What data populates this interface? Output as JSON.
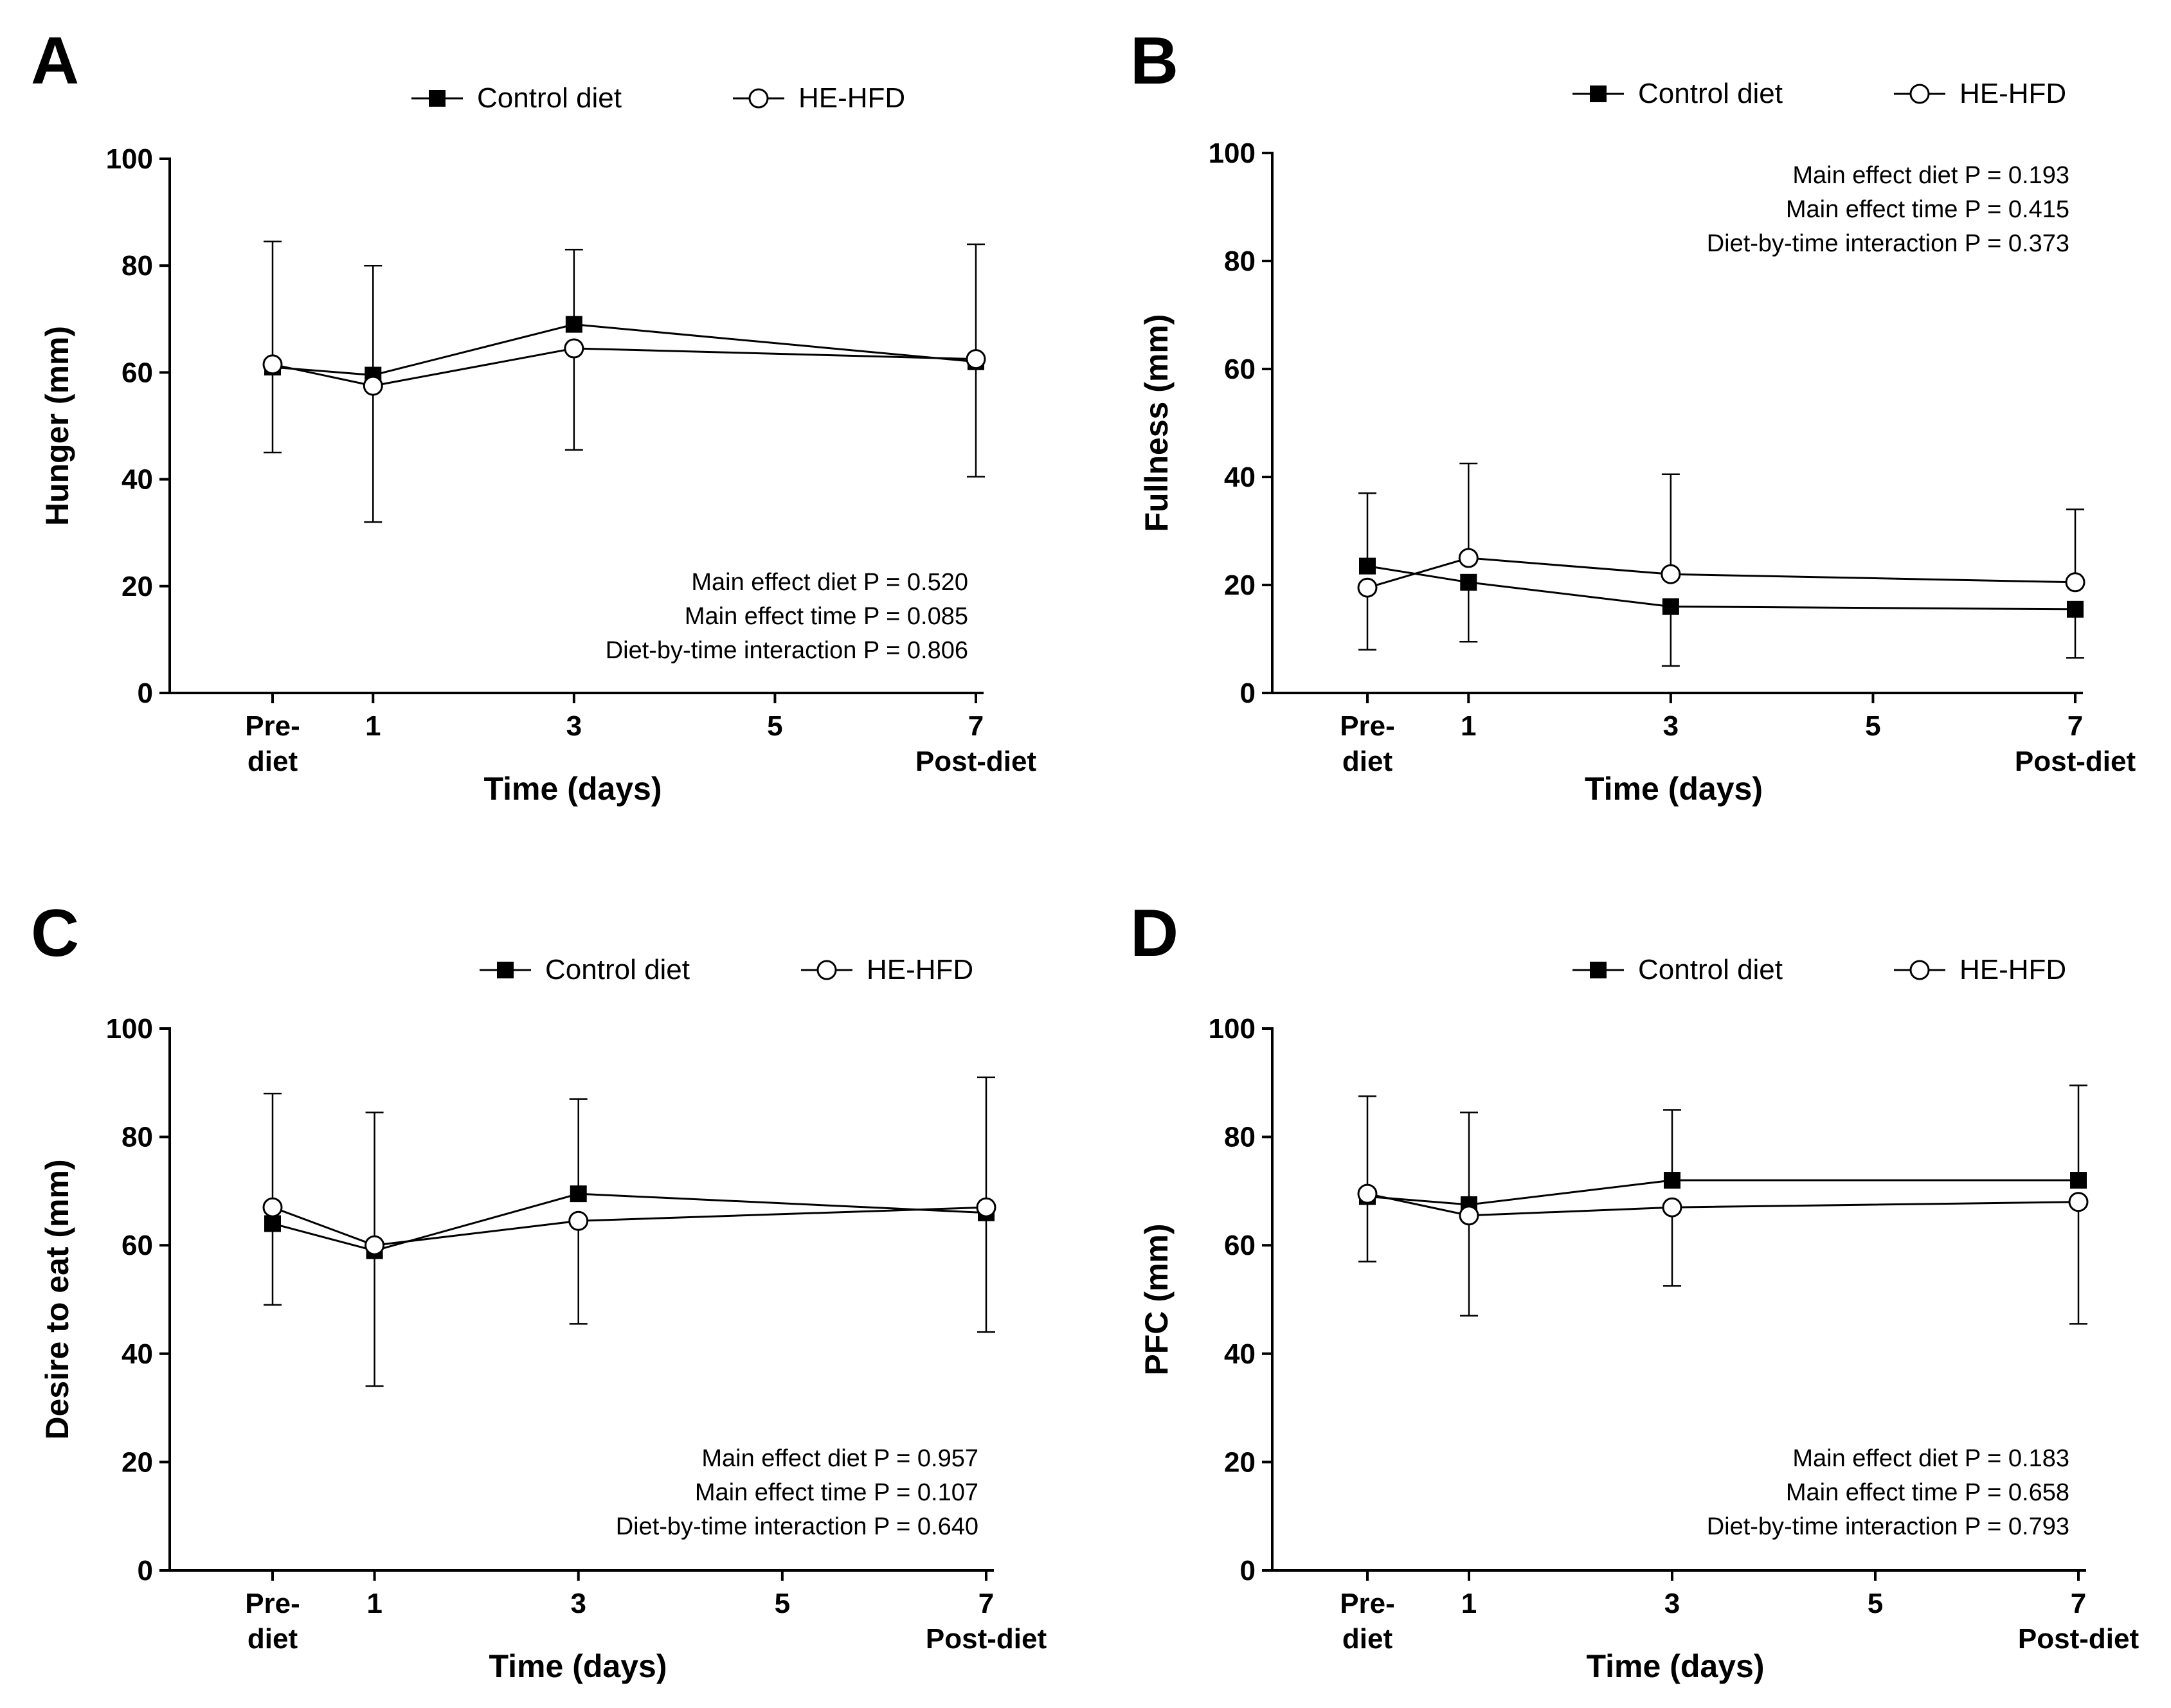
{
  "chart_data": [
    {
      "panel": "A",
      "type": "line",
      "ylabel": "Hunger (mm)",
      "xlabel": "Time (days)",
      "ylim": [
        0,
        100
      ],
      "yticks": [
        0,
        20,
        40,
        60,
        80,
        100
      ],
      "x_tick_labels": [
        {
          "x": 0,
          "lines": [
            "Pre-",
            "diet"
          ]
        },
        {
          "x": 1,
          "lines": [
            "1"
          ]
        },
        {
          "x": 3,
          "lines": [
            "3"
          ]
        },
        {
          "x": 5,
          "lines": [
            "5"
          ]
        },
        {
          "x": 7,
          "lines": [
            "7",
            "Post-diet"
          ]
        }
      ],
      "legend": [
        "Control diet",
        "HE-HFD"
      ],
      "series": [
        {
          "name": "Control diet",
          "marker": "square",
          "x": [
            0,
            1,
            3,
            7
          ],
          "values": [
            61,
            59.5,
            69,
            62
          ],
          "err_upper": [
            null,
            null,
            83,
            null
          ],
          "err_lower": [
            null,
            null,
            null,
            null
          ]
        },
        {
          "name": "HE-HFD",
          "marker": "circle",
          "x": [
            0,
            1,
            3,
            7
          ],
          "values": [
            61.5,
            57.5,
            64.5,
            62.5
          ],
          "err_upper": [
            84.5,
            80,
            null,
            84
          ],
          "err_lower": [
            45,
            32,
            45.5,
            40.5
          ]
        }
      ],
      "stats": [
        "Main effect diet P = 0.520",
        "Main effect time P = 0.085",
        "Diet-by-time interaction P = 0.806"
      ],
      "stats_position": "bottom-right"
    },
    {
      "panel": "B",
      "type": "line",
      "ylabel": "Fullness (mm)",
      "xlabel": "Time (days)",
      "ylim": [
        0,
        100
      ],
      "yticks": [
        0,
        20,
        40,
        60,
        80,
        100
      ],
      "x_tick_labels": [
        {
          "x": 0,
          "lines": [
            "Pre-",
            "diet"
          ]
        },
        {
          "x": 1,
          "lines": [
            "1"
          ]
        },
        {
          "x": 3,
          "lines": [
            "3"
          ]
        },
        {
          "x": 5,
          "lines": [
            "5"
          ]
        },
        {
          "x": 7,
          "lines": [
            "7",
            "Post-diet"
          ]
        }
      ],
      "legend": [
        "Control diet",
        "HE-HFD"
      ],
      "series": [
        {
          "name": "Control diet",
          "marker": "square",
          "x": [
            0,
            1,
            3,
            7
          ],
          "values": [
            23.5,
            20.5,
            16,
            15.5
          ],
          "err_upper": [
            37,
            null,
            null,
            null
          ],
          "err_lower": [
            null,
            9.5,
            5,
            6.5
          ]
        },
        {
          "name": "HE-HFD",
          "marker": "circle",
          "x": [
            0,
            1,
            3,
            7
          ],
          "values": [
            19.5,
            25,
            22,
            20.5
          ],
          "err_upper": [
            null,
            42.5,
            40.5,
            34
          ],
          "err_lower": [
            8,
            null,
            null,
            null
          ]
        }
      ],
      "stats": [
        "Main effect diet P = 0.193",
        "Main effect time P = 0.415",
        "Diet-by-time interaction P = 0.373"
      ],
      "stats_position": "top-right"
    },
    {
      "panel": "C",
      "type": "line",
      "ylabel": "Desire to eat (mm)",
      "xlabel": "Time (days)",
      "ylim": [
        0,
        100
      ],
      "yticks": [
        0,
        20,
        40,
        60,
        80,
        100
      ],
      "x_tick_labels": [
        {
          "x": 0,
          "lines": [
            "Pre-",
            "diet"
          ]
        },
        {
          "x": 1,
          "lines": [
            "1"
          ]
        },
        {
          "x": 3,
          "lines": [
            "3"
          ]
        },
        {
          "x": 5,
          "lines": [
            "5"
          ]
        },
        {
          "x": 7,
          "lines": [
            "7",
            "Post-diet"
          ]
        }
      ],
      "legend": [
        "Control diet",
        "HE-HFD"
      ],
      "series": [
        {
          "name": "Control diet",
          "marker": "square",
          "x": [
            0,
            1,
            3,
            7
          ],
          "values": [
            64,
            59,
            69.5,
            66
          ],
          "err_upper": [
            null,
            null,
            87,
            null
          ],
          "err_lower": [
            null,
            null,
            null,
            null
          ]
        },
        {
          "name": "HE-HFD",
          "marker": "circle",
          "x": [
            0,
            1,
            3,
            7
          ],
          "values": [
            67,
            60,
            64.5,
            67
          ],
          "err_upper": [
            88,
            84.5,
            null,
            91
          ],
          "err_lower": [
            49,
            34,
            45.5,
            44
          ]
        }
      ],
      "stats": [
        "Main effect diet P = 0.957",
        "Main effect time P = 0.107",
        "Diet-by-time interaction P = 0.640"
      ],
      "stats_position": "bottom-right"
    },
    {
      "panel": "D",
      "type": "line",
      "ylabel": "PFC (mm)",
      "xlabel": "Time (days)",
      "ylim": [
        0,
        100
      ],
      "yticks": [
        0,
        20,
        40,
        60,
        80,
        100
      ],
      "x_tick_labels": [
        {
          "x": 0,
          "lines": [
            "Pre-",
            "diet"
          ]
        },
        {
          "x": 1,
          "lines": [
            "1"
          ]
        },
        {
          "x": 3,
          "lines": [
            "3"
          ]
        },
        {
          "x": 5,
          "lines": [
            "5"
          ]
        },
        {
          "x": 7,
          "lines": [
            "7",
            "Post-diet"
          ]
        }
      ],
      "legend": [
        "Control diet",
        "HE-HFD"
      ],
      "series": [
        {
          "name": "Control diet",
          "marker": "square",
          "x": [
            0,
            1,
            3,
            7
          ],
          "values": [
            69,
            67.5,
            72,
            72
          ],
          "err_upper": [
            87.5,
            84.5,
            85,
            89.5
          ],
          "err_lower": [
            null,
            null,
            null,
            null
          ]
        },
        {
          "name": "HE-HFD",
          "marker": "circle",
          "x": [
            0,
            1,
            3,
            7
          ],
          "values": [
            69.5,
            65.5,
            67,
            68
          ],
          "err_upper": [
            null,
            null,
            null,
            null
          ],
          "err_lower": [
            57,
            47,
            52.5,
            45.5
          ]
        }
      ],
      "stats": [
        "Main effect diet P = 0.183",
        "Main effect time P = 0.658",
        "Diet-by-time interaction P = 0.793"
      ],
      "stats_position": "top-right"
    }
  ]
}
